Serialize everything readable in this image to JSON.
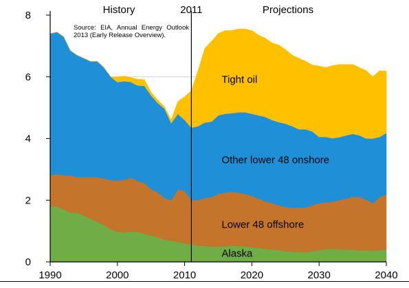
{
  "chart_data": {
    "type": "area",
    "stacked": true,
    "x": [
      1990,
      1991,
      1992,
      1993,
      1994,
      1995,
      1996,
      1997,
      1998,
      1999,
      2000,
      2001,
      2002,
      2003,
      2004,
      2005,
      2006,
      2007,
      2008,
      2009,
      2010,
      2011,
      2012,
      2013,
      2014,
      2015,
      2016,
      2017,
      2018,
      2019,
      2020,
      2021,
      2022,
      2023,
      2024,
      2025,
      2026,
      2027,
      2028,
      2029,
      2030,
      2031,
      2032,
      2033,
      2034,
      2035,
      2036,
      2037,
      2038,
      2039,
      2040
    ],
    "series": [
      {
        "name": "Alaska",
        "color": "#70AD47",
        "values": [
          1.8,
          1.8,
          1.7,
          1.6,
          1.6,
          1.5,
          1.4,
          1.3,
          1.2,
          1.05,
          0.98,
          0.96,
          0.98,
          0.97,
          0.91,
          0.86,
          0.8,
          0.72,
          0.69,
          0.65,
          0.6,
          0.57,
          0.53,
          0.52,
          0.5,
          0.5,
          0.5,
          0.52,
          0.52,
          0.5,
          0.48,
          0.45,
          0.42,
          0.4,
          0.38,
          0.35,
          0.33,
          0.33,
          0.31,
          0.34,
          0.38,
          0.41,
          0.43,
          0.41,
          0.4,
          0.39,
          0.37,
          0.37,
          0.36,
          0.38,
          0.4
        ]
      },
      {
        "name": "Lower 48 offshore",
        "color": "#C5742C",
        "values": [
          1.0,
          1.05,
          1.1,
          1.2,
          1.15,
          1.25,
          1.35,
          1.45,
          1.5,
          1.6,
          1.65,
          1.7,
          1.75,
          1.65,
          1.65,
          1.5,
          1.45,
          1.35,
          1.31,
          1.7,
          1.7,
          1.43,
          1.47,
          1.55,
          1.6,
          1.7,
          1.75,
          1.75,
          1.73,
          1.7,
          1.66,
          1.6,
          1.54,
          1.5,
          1.45,
          1.43,
          1.42,
          1.43,
          1.45,
          1.5,
          1.52,
          1.52,
          1.52,
          1.59,
          1.65,
          1.72,
          1.73,
          1.65,
          1.54,
          1.72,
          1.78
        ]
      },
      {
        "name": "Other lower 48 onshore",
        "color": "#1F90D8",
        "values": [
          4.6,
          4.6,
          4.5,
          4.05,
          3.95,
          3.85,
          3.75,
          3.75,
          3.6,
          3.35,
          3.2,
          3.2,
          3.1,
          3.1,
          3.15,
          3.04,
          2.9,
          2.9,
          2.5,
          2.45,
          2.3,
          2.35,
          2.4,
          2.45,
          2.45,
          2.55,
          2.55,
          2.55,
          2.6,
          2.65,
          2.66,
          2.7,
          2.74,
          2.7,
          2.7,
          2.7,
          2.65,
          2.54,
          2.54,
          2.39,
          2.15,
          2.12,
          2.06,
          2.04,
          2.05,
          2.04,
          2.0,
          1.98,
          2.1,
          1.95,
          2.0
        ]
      },
      {
        "name": "Tight oil",
        "color": "#FFC000",
        "values": [
          0,
          0,
          0,
          0,
          0,
          0,
          0,
          0,
          0,
          0,
          0.17,
          0.16,
          0.15,
          0.2,
          0.2,
          0.1,
          0.1,
          0.06,
          0.1,
          0.4,
          0.75,
          1.2,
          1.8,
          2.4,
          2.6,
          2.65,
          2.7,
          2.68,
          2.7,
          2.7,
          2.7,
          2.6,
          2.55,
          2.5,
          2.5,
          2.4,
          2.3,
          2.3,
          2.2,
          2.15,
          2.3,
          2.25,
          2.35,
          2.36,
          2.3,
          2.25,
          2.2,
          2.2,
          2.0,
          2.15,
          2.0
        ]
      }
    ],
    "series_labels": [
      {
        "series": "Tight oil",
        "text": "Tight oil",
        "x": 2015.5,
        "y": 5.8
      },
      {
        "series": "Other lower 48 onshore",
        "text": "Other lower 48 onshore",
        "x": 2015.5,
        "y": 3.2
      },
      {
        "series": "Lower 48 offshore",
        "text": "Lower 48 offshore",
        "x": 2015.5,
        "y": 1.1
      },
      {
        "series": "Alaska",
        "text": "Alaska",
        "x": 2015.5,
        "y": 0.17
      }
    ],
    "xlim": [
      1990,
      2040
    ],
    "ylim": [
      0,
      8
    ],
    "x_ticks": [
      1990,
      2000,
      2010,
      2020,
      2030,
      2040
    ],
    "y_ticks": [
      0,
      2,
      4,
      6,
      8
    ],
    "divider_year": 2011,
    "divider_label": "2011",
    "history_label": "History",
    "projections_label": "Projections",
    "grid": true,
    "gridline_y": [
      6
    ]
  },
  "source_note": "Source: EIA, Annual Energy Outlook 2013 (Early Release Overview)."
}
